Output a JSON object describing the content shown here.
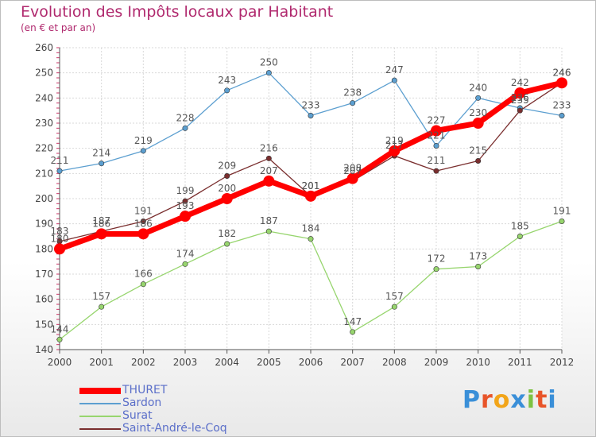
{
  "header": {
    "title": "Evolution des Impôts locaux par Habitant",
    "subtitle": "(en € et par an)"
  },
  "logo": {
    "text": "Proxiti",
    "letter_colors": [
      "#3a8fd8",
      "#e8552a",
      "#f2a51a",
      "#3a8fd8",
      "#7dc242",
      "#e8552a",
      "#3a8fd8"
    ]
  },
  "chart_data": {
    "type": "line",
    "x": [
      "2000",
      "2001",
      "2002",
      "2003",
      "2004",
      "2005",
      "2006",
      "2007",
      "2008",
      "2009",
      "2010",
      "2011",
      "2012"
    ],
    "ylim": [
      140,
      260
    ],
    "yticks": [
      140,
      150,
      160,
      170,
      180,
      190,
      200,
      210,
      220,
      230,
      240,
      250,
      260
    ],
    "grid": true,
    "legend_position": "bottom-left",
    "series": [
      {
        "name": "Sardon",
        "color": "#5c9fd0",
        "values": [
          211,
          214,
          219,
          228,
          243,
          250,
          233,
          238,
          247,
          221,
          240,
          236,
          233
        ]
      },
      {
        "name": "Surat",
        "color": "#97d56e",
        "values": [
          144,
          157,
          166,
          174,
          182,
          187,
          184,
          147,
          157,
          172,
          173,
          185,
          191
        ]
      },
      {
        "name": "Saint-André-le-Coq",
        "color": "#7a2e2e",
        "values": [
          183,
          187,
          191,
          199,
          209,
          216,
          201,
          207,
          217,
          211,
          215,
          235,
          246
        ]
      },
      {
        "name": "THURET",
        "color": "#ff0000",
        "values": [
          180,
          186,
          186,
          193,
          200,
          207,
          201,
          208,
          219,
          227,
          230,
          242,
          246
        ]
      }
    ],
    "legend_order": [
      "THURET",
      "Sardon",
      "Surat",
      "Saint-André-le-Coq"
    ]
  }
}
